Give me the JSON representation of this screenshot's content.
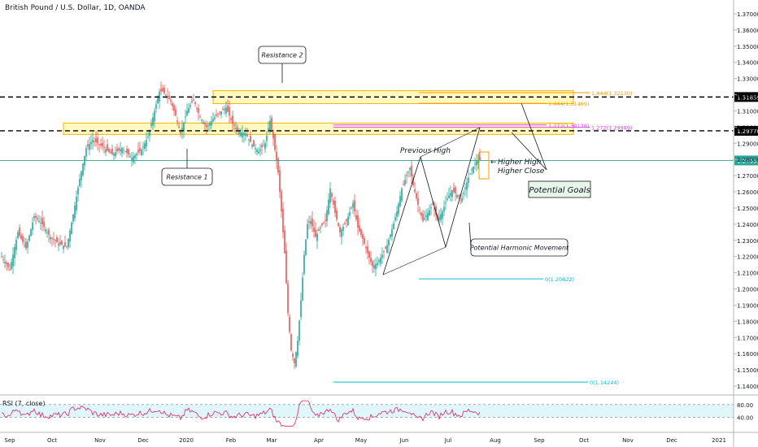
{
  "header": {
    "title": "British Pound / U.S. Dollar, 1D, OANDA"
  },
  "rsi_label": "RSI (7, close)",
  "colors": {
    "up": "#26a69a",
    "down": "#ef5350",
    "zone_fill": "#fff176",
    "zone_stroke": "#f5b400",
    "fib": "#ff9800",
    "magenta": "#e040fb",
    "cyan": "#00bcd4",
    "rsi_line": "#e91e63",
    "rsi_band": "#e0f7fa",
    "price_line": "#26a69a"
  },
  "annotations": {
    "resistance1": "Resistance 1",
    "resistance2": "Resistance 2",
    "previous_high": "Previous High",
    "higher_high": "Higher High",
    "higher_close": "Higher Close",
    "potential_goals": "Potential Goals",
    "harmonic": "Potential Harmonic Movement",
    "arrow_glyph": "←"
  },
  "levels": {
    "fib1": {
      "label": "1.444(1.32130)",
      "price": 1.3213
    },
    "fib2": {
      "label": "1.444(1.31469)",
      "price": 1.3147
    },
    "fib3": {
      "label": "1.272(1.30126)",
      "price": 1.3013
    },
    "fib4": {
      "label": "1.272(1.29989)",
      "price": 1.2999
    },
    "fib0a": {
      "label": "0(1.20622)",
      "price": 1.20622
    },
    "fib0b": {
      "label": "0(1.14244)",
      "price": 1.14244
    },
    "res_upper": {
      "label": "1.31859",
      "price": 1.31859
    },
    "res_lower": {
      "label": "1.29770",
      "price": 1.2977
    },
    "last_price": {
      "label": "1.27939",
      "price": 1.27939
    }
  },
  "chart_data": {
    "type": "candlestick",
    "title": "British Pound / U.S. Dollar, 1D, OANDA",
    "ylim": [
      1.135,
      1.375
    ],
    "y_ticks": [
      "1.37000",
      "1.36000",
      "1.35000",
      "1.34000",
      "1.33000",
      "1.32000",
      "1.31000",
      "1.30000",
      "1.29000",
      "1.28000",
      "1.27000",
      "1.26000",
      "1.25000",
      "1.24000",
      "1.23000",
      "1.22000",
      "1.21000",
      "1.20000",
      "1.19000",
      "1.18000",
      "1.17000",
      "1.16000",
      "1.15000",
      "1.14000"
    ],
    "x_ticks": [
      "Sep",
      "Oct",
      "Nov",
      "Dec",
      "2020",
      "Feb",
      "Mar",
      "Apr",
      "May",
      "Jun",
      "Jul",
      "Aug",
      "Sep",
      "Oct",
      "Nov",
      "Dec",
      "2021"
    ],
    "price_path": [
      [
        0,
        1.22
      ],
      [
        5,
        1.212
      ],
      [
        10,
        1.235
      ],
      [
        15,
        1.225
      ],
      [
        20,
        1.245
      ],
      [
        25,
        1.24
      ],
      [
        30,
        1.232
      ],
      [
        35,
        1.228
      ],
      [
        40,
        1.226
      ],
      [
        44,
        1.246
      ],
      [
        48,
        1.268
      ],
      [
        52,
        1.287
      ],
      [
        56,
        1.292
      ],
      [
        62,
        1.288
      ],
      [
        68,
        1.283
      ],
      [
        74,
        1.287
      ],
      [
        80,
        1.281
      ],
      [
        86,
        1.286
      ],
      [
        90,
        1.294
      ],
      [
        94,
        1.31
      ],
      [
        97,
        1.322
      ],
      [
        99,
        1.322
      ],
      [
        101,
        1.32
      ],
      [
        104,
        1.316
      ],
      [
        107,
        1.307
      ],
      [
        110,
        1.296
      ],
      [
        114,
        1.31
      ],
      [
        118,
        1.317
      ],
      [
        122,
        1.306
      ],
      [
        126,
        1.3
      ],
      [
        130,
        1.305
      ],
      [
        134,
        1.309
      ],
      [
        138,
        1.312
      ],
      [
        142,
        1.302
      ],
      [
        146,
        1.297
      ],
      [
        150,
        1.296
      ],
      [
        154,
        1.289
      ],
      [
        158,
        1.285
      ],
      [
        162,
        1.29
      ],
      [
        165,
        1.304
      ],
      [
        167,
        1.293
      ],
      [
        170,
        1.272
      ],
      [
        172,
        1.248
      ],
      [
        174,
        1.222
      ],
      [
        176,
        1.185
      ],
      [
        178,
        1.162
      ],
      [
        180,
        1.154
      ],
      [
        182,
        1.168
      ],
      [
        184,
        1.193
      ],
      [
        186,
        1.221
      ],
      [
        188,
        1.24
      ],
      [
        190,
        1.242
      ],
      [
        193,
        1.232
      ],
      [
        196,
        1.238
      ],
      [
        199,
        1.242
      ],
      [
        202,
        1.262
      ],
      [
        205,
        1.247
      ],
      [
        208,
        1.235
      ],
      [
        212,
        1.242
      ],
      [
        216,
        1.253
      ],
      [
        219,
        1.238
      ],
      [
        222,
        1.231
      ],
      [
        225,
        1.222
      ],
      [
        228,
        1.214
      ],
      [
        231,
        1.216
      ],
      [
        234,
        1.221
      ],
      [
        237,
        1.227
      ],
      [
        240,
        1.237
      ],
      [
        243,
        1.248
      ],
      [
        246,
        1.262
      ],
      [
        249,
        1.27
      ],
      [
        251,
        1.275
      ],
      [
        253,
        1.264
      ],
      [
        256,
        1.252
      ],
      [
        259,
        1.242
      ],
      [
        262,
        1.247
      ],
      [
        265,
        1.252
      ],
      [
        268,
        1.243
      ],
      [
        271,
        1.248
      ],
      [
        274,
        1.256
      ],
      [
        277,
        1.261
      ],
      [
        280,
        1.258
      ],
      [
        283,
        1.256
      ],
      [
        286,
        1.266
      ],
      [
        289,
        1.274
      ],
      [
        292,
        1.279
      ],
      [
        294,
        1.2795
      ]
    ],
    "rsi": {
      "range": [
        0,
        100
      ],
      "upper": 80,
      "lower": 40,
      "last": 80
    },
    "annotated_levels": {
      "fib_1.444_a": 1.3213,
      "fib_1.444_b": 1.31469,
      "fib_1.272_a": 1.30126,
      "fib_1.272_b": 1.29989,
      "fib_0_a": 1.20622,
      "fib_0_b": 1.14244,
      "resistance_upper": 1.31859,
      "resistance_lower": 1.2977,
      "last": 1.27939
    }
  }
}
